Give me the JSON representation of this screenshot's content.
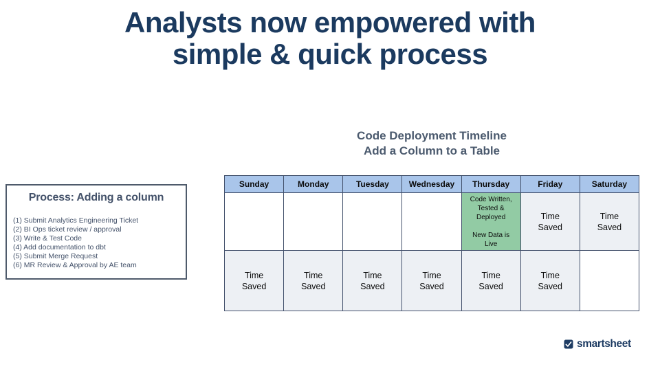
{
  "slide": {
    "title_line1": "Analysts now empowered with",
    "title_line2": "simple & quick process"
  },
  "timeline": {
    "title_line1": "Code Deployment Timeline",
    "title_line2": "Add a Column to a Table"
  },
  "process_box": {
    "title": "Process: Adding a column",
    "steps": [
      "(1) Submit Analytics Engineering Ticket",
      "(2) BI Ops ticket review / approval",
      "(3) Write & Test Code",
      "(4) Add documentation to dbt",
      "(5) Submit Merge Request",
      "(6) MR Review & Approval by AE team"
    ]
  },
  "calendar": {
    "days": [
      "Sunday",
      "Monday",
      "Tuesday",
      "Wednesday",
      "Thursday",
      "Friday",
      "Saturday"
    ],
    "rows": [
      [
        {
          "type": "empty",
          "text": ""
        },
        {
          "type": "empty",
          "text": ""
        },
        {
          "type": "empty",
          "text": ""
        },
        {
          "type": "empty",
          "text": ""
        },
        {
          "type": "highlight",
          "text": "Code Written,\nTested &\nDeployed\n\nNew Data is\nLive"
        },
        {
          "type": "saved",
          "text": "Time\nSaved"
        },
        {
          "type": "saved",
          "text": "Time\nSaved"
        }
      ],
      [
        {
          "type": "saved",
          "text": "Time\nSaved"
        },
        {
          "type": "saved",
          "text": "Time\nSaved"
        },
        {
          "type": "saved",
          "text": "Time\nSaved"
        },
        {
          "type": "saved",
          "text": "Time\nSaved"
        },
        {
          "type": "saved",
          "text": "Time\nSaved"
        },
        {
          "type": "saved",
          "text": "Time\nSaved"
        },
        {
          "type": "absent",
          "text": ""
        }
      ]
    ]
  },
  "logo": {
    "text": "smartsheet"
  },
  "colors": {
    "title": "#1b3a5f",
    "subtitle": "#4b5a6e",
    "text_slate": "#44526a",
    "box_border": "#4e5a6b",
    "table_border": "#42506b",
    "header_bg": "#a9c5ea",
    "highlight_bg": "#92cba4",
    "saved_bg": "#edf0f4",
    "logo": "#1e3c63"
  }
}
